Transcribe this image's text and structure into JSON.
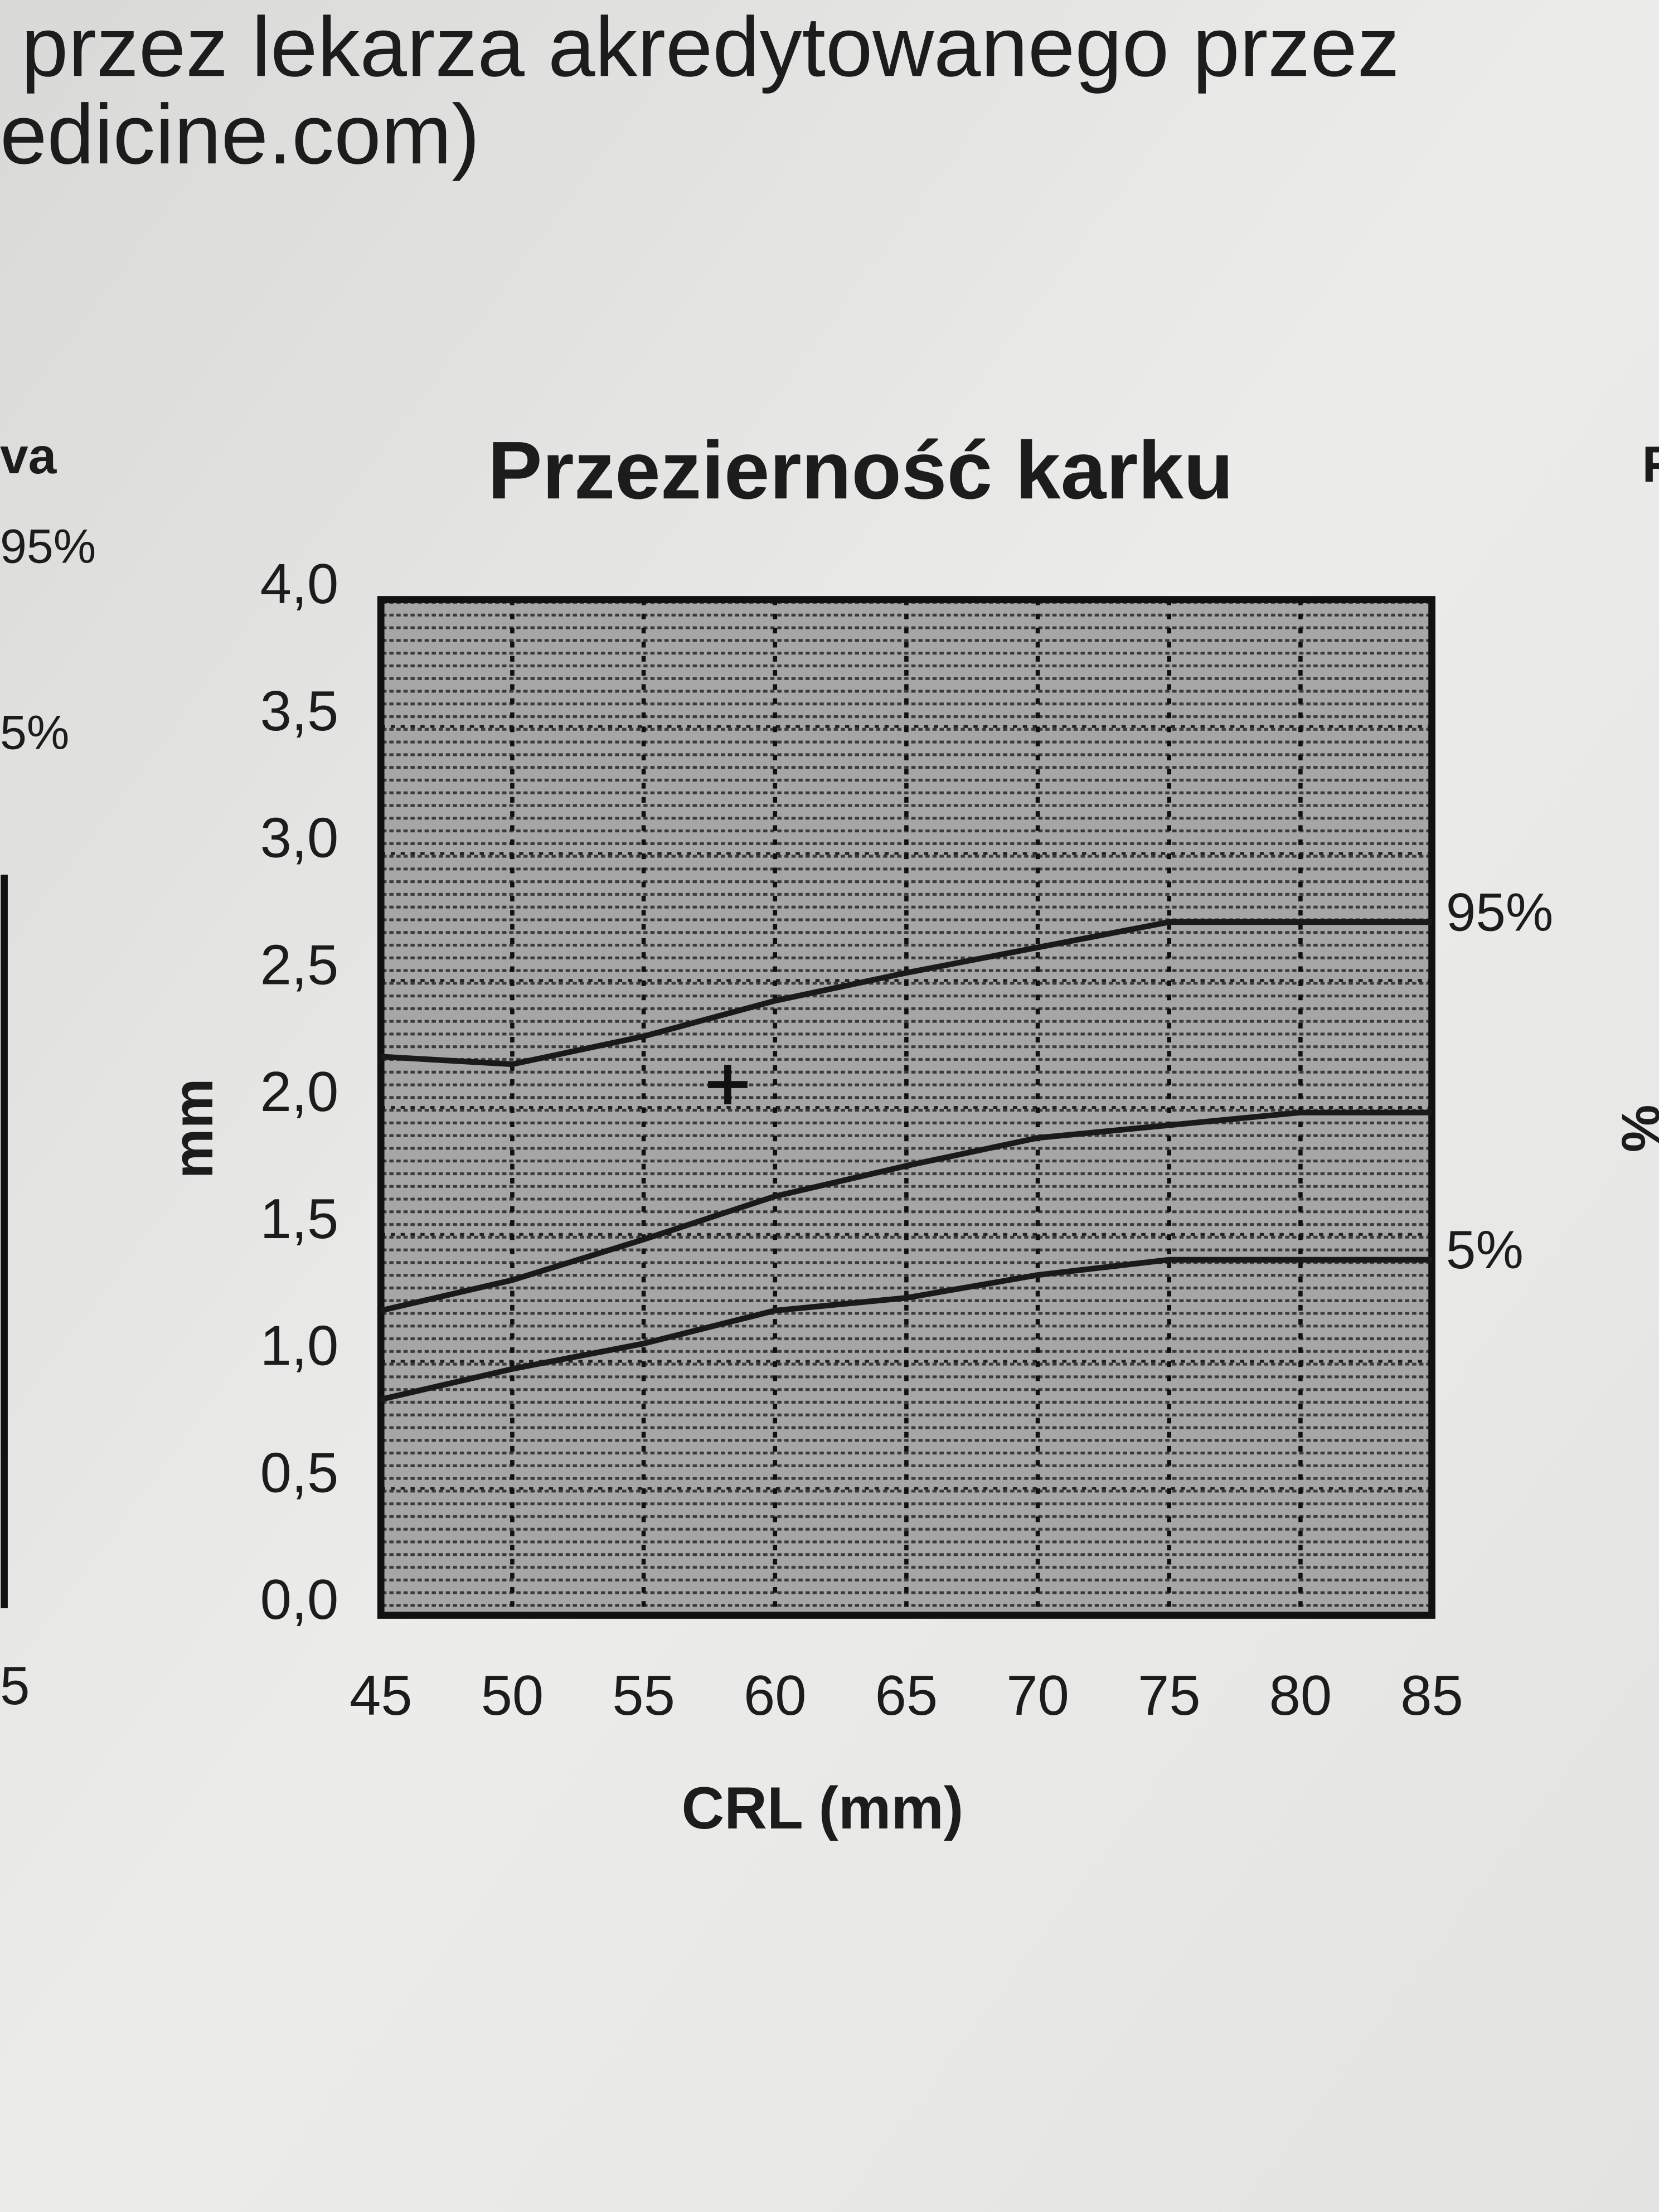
{
  "page_text": {
    "header_lines": [
      "przez lekarza akredytowanego przez",
      "edicine.com)"
    ],
    "left_margin": [
      "va",
      "95%",
      "5%",
      "5"
    ],
    "right_margin": [
      "F",
      "%"
    ]
  },
  "chart_data": {
    "type": "line",
    "title": "Przezierność karku",
    "x_label": "CRL (mm)",
    "y_label": "mm",
    "x": [
      45,
      50,
      55,
      60,
      65,
      70,
      75,
      80,
      85
    ],
    "series": [
      {
        "name": "95%",
        "color": "#1a1a1a",
        "values": [
          2.2,
          2.17,
          2.28,
          2.42,
          2.53,
          2.63,
          2.73,
          2.73,
          2.73
        ]
      },
      {
        "color": "#1a1a1a",
        "values": [
          1.2,
          1.32,
          1.48,
          1.65,
          1.77,
          1.88,
          1.93,
          1.98,
          1.98
        ]
      },
      {
        "name": "5%",
        "color": "#1a1a1a",
        "values": [
          0.85,
          0.97,
          1.07,
          1.2,
          1.25,
          1.34,
          1.4,
          1.4,
          1.4
        ]
      }
    ],
    "point": {
      "x": 58.2,
      "y": 2.09
    },
    "xlim": [
      45,
      85
    ],
    "xticks": [
      45,
      50,
      55,
      60,
      65,
      70,
      75,
      80,
      85
    ],
    "ylim": [
      0,
      4
    ],
    "yticks": [
      {
        "value": 0,
        "label": "0,0"
      },
      {
        "value": 0.5,
        "label": "0,5"
      },
      {
        "value": 1,
        "label": "1,0"
      },
      {
        "value": 1.5,
        "label": "1,5"
      },
      {
        "value": 2,
        "label": "2,0"
      },
      {
        "value": 2.5,
        "label": "2,5"
      },
      {
        "value": 3,
        "label": "3,0"
      },
      {
        "value": 3.5,
        "label": "3,5"
      },
      {
        "value": 4,
        "label": "4,0"
      }
    ],
    "grid": true
  }
}
